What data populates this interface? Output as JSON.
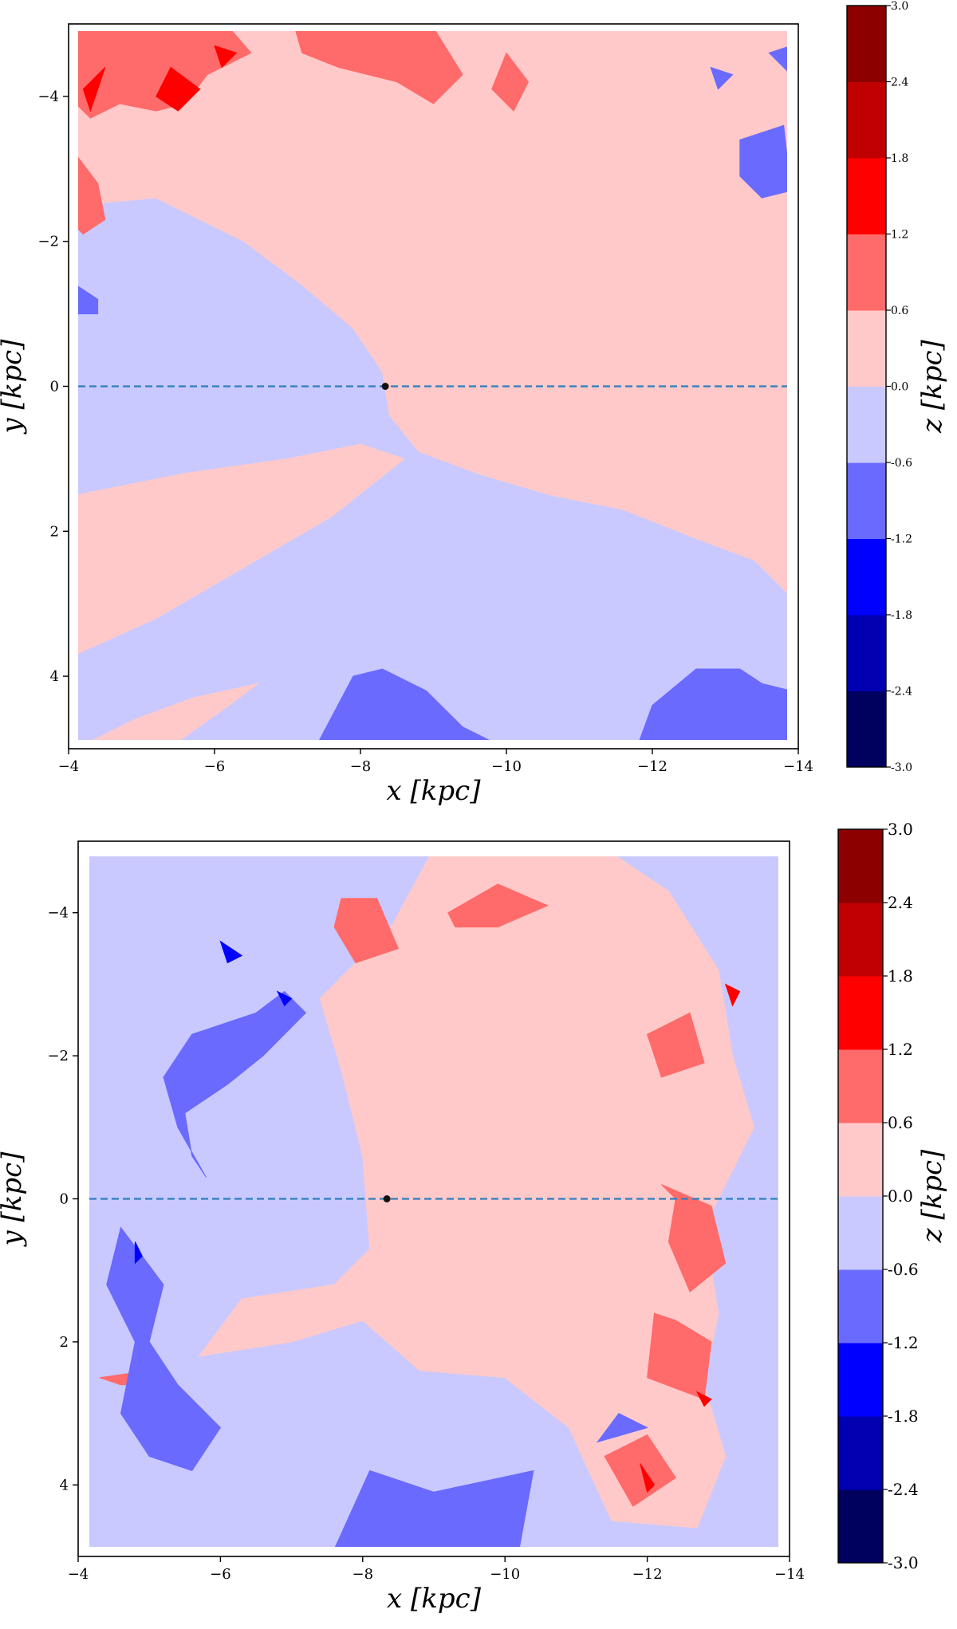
{
  "colors": {
    "levels": [
      "#00005f",
      "#0000b0",
      "#0000ff",
      "#6a6aff",
      "#c9c9ff",
      "#ffc9c9",
      "#ff6a6a",
      "#ff0000",
      "#c00000",
      "#8c0000"
    ],
    "background": "#ffffff",
    "dashed_line": "#2f7fbf",
    "sun_marker": "#111111"
  },
  "chart_data": [
    {
      "type": "heatmap",
      "subtype": "filled-contour map",
      "xlabel": "x [kpc]",
      "ylabel": "y [kpc]",
      "xlim": [
        -4,
        -14
      ],
      "ylim": [
        5,
        -5
      ],
      "x_ticks": [
        "−4",
        "−6",
        "−8",
        "−10",
        "−12",
        "−14"
      ],
      "y_ticks": [
        "−4",
        "−2",
        "0",
        "2",
        "4"
      ],
      "colorbar": {
        "label": "z [kpc]",
        "levels": [
          -3.0,
          -2.4,
          -1.8,
          -1.2,
          -0.6,
          0.0,
          0.6,
          1.2,
          1.8,
          2.4,
          3.0
        ],
        "tick_labels": [
          "-3.0",
          "-2.4",
          "-1.8",
          "-1.2",
          "-0.6",
          "0.0",
          "0.6",
          "1.2",
          "1.8",
          "2.4",
          "3.0"
        ]
      },
      "reference_line": {
        "y": 0,
        "style": "dashed"
      },
      "marker": {
        "x": -8.34,
        "y": 0
      },
      "grid": false,
      "background_level": 4,
      "regions": [
        {
          "level": 5,
          "points": [
            [
              -4.1,
              -2.5
            ],
            [
              -5.2,
              -2.6
            ],
            [
              -6.4,
              -2.0
            ],
            [
              -7.2,
              -1.4
            ],
            [
              -7.9,
              -0.8
            ],
            [
              -8.3,
              -0.2
            ],
            [
              -8.4,
              0.4
            ],
            [
              -8.8,
              0.9
            ],
            [
              -9.6,
              1.2
            ],
            [
              -10.6,
              1.5
            ],
            [
              -11.6,
              1.7
            ],
            [
              -12.6,
              2.1
            ],
            [
              -13.4,
              2.4
            ],
            [
              -13.9,
              2.9
            ],
            [
              -13.9,
              -4.95
            ],
            [
              -4.1,
              -4.95
            ]
          ]
        },
        {
          "level": 5,
          "points": [
            [
              -4.1,
              1.5
            ],
            [
              -5.6,
              1.2
            ],
            [
              -7.0,
              1.0
            ],
            [
              -8.0,
              0.8
            ],
            [
              -8.6,
              1.0
            ],
            [
              -7.6,
              1.8
            ],
            [
              -6.4,
              2.5
            ],
            [
              -5.2,
              3.2
            ],
            [
              -4.1,
              3.7
            ]
          ]
        },
        {
          "level": 5,
          "points": [
            [
              -4.3,
              4.9
            ],
            [
              -5.5,
              4.9
            ],
            [
              -6.2,
              4.4
            ],
            [
              -6.6,
              4.1
            ],
            [
              -5.7,
              4.3
            ],
            [
              -4.9,
              4.6
            ]
          ]
        },
        {
          "level": 6,
          "points": [
            [
              -4.1,
              -4.95
            ],
            [
              -6.2,
              -4.95
            ],
            [
              -6.5,
              -4.6
            ],
            [
              -5.9,
              -4.3
            ],
            [
              -5.6,
              -3.9
            ],
            [
              -5.2,
              -3.8
            ],
            [
              -4.7,
              -3.9
            ],
            [
              -4.3,
              -3.7
            ],
            [
              -4.1,
              -3.9
            ]
          ]
        },
        {
          "level": 6,
          "points": [
            [
              -7.1,
              -4.95
            ],
            [
              -9.0,
              -4.95
            ],
            [
              -9.4,
              -4.3
            ],
            [
              -9.0,
              -3.9
            ],
            [
              -8.5,
              -4.2
            ],
            [
              -7.7,
              -4.4
            ],
            [
              -7.2,
              -4.6
            ]
          ]
        },
        {
          "level": 6,
          "points": [
            [
              -4.1,
              -3.2
            ],
            [
              -4.4,
              -2.8
            ],
            [
              -4.5,
              -2.3
            ],
            [
              -4.2,
              -2.1
            ],
            [
              -4.1,
              -2.2
            ]
          ]
        },
        {
          "level": 6,
          "points": [
            [
              -10.0,
              -4.6
            ],
            [
              -10.3,
              -4.2
            ],
            [
              -10.1,
              -3.8
            ],
            [
              -9.8,
              -4.1
            ]
          ]
        },
        {
          "level": 7,
          "points": [
            [
              -4.2,
              -4.1
            ],
            [
              -4.5,
              -4.4
            ],
            [
              -4.3,
              -3.8
            ]
          ]
        },
        {
          "level": 7,
          "points": [
            [
              -5.4,
              -4.4
            ],
            [
              -5.8,
              -4.1
            ],
            [
              -5.5,
              -3.8
            ],
            [
              -5.2,
              -4.0
            ]
          ]
        },
        {
          "level": 7,
          "points": [
            [
              -6.0,
              -4.7
            ],
            [
              -6.3,
              -4.6
            ],
            [
              -6.1,
              -4.4
            ]
          ]
        },
        {
          "level": 3,
          "points": [
            [
              -4.1,
              -1.4
            ],
            [
              -4.4,
              -1.2
            ],
            [
              -4.4,
              -1.0
            ],
            [
              -4.1,
              -1.0
            ]
          ]
        },
        {
          "level": 3,
          "points": [
            [
              -13.2,
              -3.4
            ],
            [
              -13.8,
              -3.6
            ],
            [
              -13.9,
              -2.7
            ],
            [
              -13.5,
              -2.6
            ],
            [
              -13.2,
              -2.9
            ]
          ]
        },
        {
          "level": 3,
          "points": [
            [
              -7.4,
              4.95
            ],
            [
              -7.9,
              4.0
            ],
            [
              -8.3,
              3.9
            ],
            [
              -8.9,
              4.2
            ],
            [
              -9.4,
              4.7
            ],
            [
              -9.9,
              4.95
            ]
          ]
        },
        {
          "level": 3,
          "points": [
            [
              -11.8,
              4.95
            ],
            [
              -12.0,
              4.4
            ],
            [
              -12.6,
              3.9
            ],
            [
              -13.2,
              3.9
            ],
            [
              -13.5,
              4.1
            ],
            [
              -13.9,
              4.2
            ],
            [
              -13.9,
              4.95
            ]
          ]
        },
        {
          "level": 3,
          "points": [
            [
              -13.9,
              -4.7
            ],
            [
              -13.6,
              -4.6
            ],
            [
              -13.9,
              -4.3
            ]
          ]
        },
        {
          "level": 3,
          "points": [
            [
              -12.8,
              -4.4
            ],
            [
              -13.1,
              -4.3
            ],
            [
              -12.9,
              -4.1
            ]
          ]
        }
      ]
    },
    {
      "type": "heatmap",
      "subtype": "filled-contour map",
      "xlabel": "x [kpc]",
      "ylabel": "y [kpc]",
      "xlim": [
        -4,
        -14
      ],
      "ylim": [
        5,
        -5
      ],
      "x_ticks": [
        "−4",
        "−6",
        "−8",
        "−10",
        "−12",
        "−14"
      ],
      "y_ticks": [
        "−4",
        "−2",
        "0",
        "2",
        "4"
      ],
      "colorbar": {
        "label": "z [kpc]",
        "levels": [
          -3.0,
          -2.4,
          -1.8,
          -1.2,
          -0.6,
          0.0,
          0.6,
          1.2,
          1.8,
          2.4,
          3.0
        ],
        "tick_labels": [
          "-3.0",
          "-2.4",
          "-1.8",
          "-1.2",
          "-0.6",
          "0.0",
          "0.6",
          "1.2",
          "1.8",
          "2.4",
          "3.0"
        ]
      },
      "reference_line": {
        "y": 0,
        "style": "dashed"
      },
      "marker": {
        "x": -8.34,
        "y": 0
      },
      "grid": false,
      "background_level": 4,
      "regions": [
        {
          "level": 5,
          "points": [
            [
              -7.4,
              -2.8
            ],
            [
              -8.4,
              -3.8
            ],
            [
              -9.0,
              -4.9
            ],
            [
              -11.4,
              -4.9
            ],
            [
              -12.3,
              -4.3
            ],
            [
              -13.0,
              -3.2
            ],
            [
              -13.2,
              -2.0
            ],
            [
              -13.5,
              -1.0
            ],
            [
              -12.8,
              0.4
            ],
            [
              -13.0,
              1.6
            ],
            [
              -12.8,
              2.6
            ],
            [
              -13.1,
              3.6
            ],
            [
              -12.7,
              4.6
            ],
            [
              -11.5,
              4.5
            ],
            [
              -10.9,
              3.2
            ],
            [
              -10.0,
              2.5
            ],
            [
              -8.8,
              2.4
            ],
            [
              -8.0,
              1.7
            ],
            [
              -7.0,
              2.0
            ],
            [
              -5.7,
              2.2
            ],
            [
              -6.3,
              1.4
            ],
            [
              -7.6,
              1.2
            ],
            [
              -8.1,
              0.7
            ],
            [
              -8.0,
              -0.6
            ],
            [
              -7.7,
              -1.8
            ]
          ]
        },
        {
          "level": 6,
          "points": [
            [
              -7.7,
              -4.2
            ],
            [
              -8.2,
              -4.2
            ],
            [
              -8.5,
              -3.5
            ],
            [
              -7.9,
              -3.3
            ],
            [
              -7.6,
              -3.8
            ]
          ]
        },
        {
          "level": 6,
          "points": [
            [
              -9.2,
              -4.0
            ],
            [
              -9.9,
              -4.4
            ],
            [
              -10.6,
              -4.1
            ],
            [
              -9.9,
              -3.8
            ],
            [
              -9.3,
              -3.8
            ]
          ]
        },
        {
          "level": 6,
          "points": [
            [
              -12.6,
              -2.6
            ],
            [
              -12.0,
              -2.3
            ],
            [
              -12.2,
              -1.7
            ],
            [
              -12.8,
              -1.9
            ]
          ]
        },
        {
          "level": 6,
          "points": [
            [
              -12.2,
              -0.2
            ],
            [
              -12.4,
              0.0
            ],
            [
              -12.3,
              0.6
            ],
            [
              -12.6,
              1.3
            ],
            [
              -13.1,
              0.9
            ],
            [
              -12.9,
              0.1
            ]
          ]
        },
        {
          "level": 6,
          "points": [
            [
              -12.1,
              1.6
            ],
            [
              -12.0,
              2.5
            ],
            [
              -12.8,
              2.8
            ],
            [
              -12.9,
              2.0
            ],
            [
              -12.4,
              1.7
            ]
          ]
        },
        {
          "level": 6,
          "points": [
            [
              -11.4,
              3.6
            ],
            [
              -11.8,
              4.3
            ],
            [
              -12.4,
              3.9
            ],
            [
              -12.0,
              3.3
            ]
          ]
        },
        {
          "level": 6,
          "points": [
            [
              -4.3,
              2.5
            ],
            [
              -5.0,
              2.4
            ],
            [
              -5.2,
              2.6
            ],
            [
              -4.6,
              2.6
            ]
          ]
        },
        {
          "level": 7,
          "points": [
            [
              -13.1,
              -3.0
            ],
            [
              -13.3,
              -2.9
            ],
            [
              -13.2,
              -2.7
            ]
          ]
        },
        {
          "level": 7,
          "points": [
            [
              -12.7,
              2.7
            ],
            [
              -12.9,
              2.8
            ],
            [
              -12.8,
              2.9
            ]
          ]
        },
        {
          "level": 7,
          "points": [
            [
              -11.9,
              3.7
            ],
            [
              -12.1,
              4.0
            ],
            [
              -12.0,
              4.1
            ]
          ]
        },
        {
          "level": 3,
          "points": [
            [
              -6.5,
              -2.6
            ],
            [
              -6.9,
              -2.9
            ],
            [
              -7.2,
              -2.6
            ],
            [
              -6.6,
              -2.0
            ],
            [
              -6.1,
              -1.6
            ],
            [
              -5.5,
              -1.2
            ],
            [
              -5.6,
              -0.6
            ],
            [
              -5.8,
              -0.3
            ],
            [
              -5.4,
              -1.0
            ],
            [
              -5.2,
              -1.7
            ],
            [
              -5.6,
              -2.3
            ]
          ]
        },
        {
          "level": 3,
          "points": [
            [
              -4.6,
              0.4
            ],
            [
              -5.2,
              1.2
            ],
            [
              -5.0,
              2.0
            ],
            [
              -5.4,
              2.6
            ],
            [
              -6.0,
              3.2
            ],
            [
              -5.6,
              3.8
            ],
            [
              -5.0,
              3.6
            ],
            [
              -4.6,
              3.0
            ],
            [
              -4.8,
              2.0
            ],
            [
              -4.4,
              1.2
            ]
          ]
        },
        {
          "level": 3,
          "points": [
            [
              -7.6,
              4.9
            ],
            [
              -8.1,
              3.8
            ],
            [
              -9.0,
              4.1
            ],
            [
              -10.4,
              3.8
            ],
            [
              -10.2,
              4.9
            ]
          ]
        },
        {
          "level": 3,
          "points": [
            [
              -12.0,
              3.2
            ],
            [
              -11.3,
              3.4
            ],
            [
              -11.6,
              3.0
            ]
          ]
        },
        {
          "level": 2,
          "points": [
            [
              -6.0,
              -3.6
            ],
            [
              -6.3,
              -3.4
            ],
            [
              -6.1,
              -3.3
            ]
          ]
        },
        {
          "level": 2,
          "points": [
            [
              -6.8,
              -2.9
            ],
            [
              -7.0,
              -2.8
            ],
            [
              -6.9,
              -2.7
            ]
          ]
        },
        {
          "level": 2,
          "points": [
            [
              -4.8,
              0.6
            ],
            [
              -4.9,
              0.8
            ],
            [
              -4.8,
              0.9
            ]
          ]
        }
      ]
    }
  ]
}
